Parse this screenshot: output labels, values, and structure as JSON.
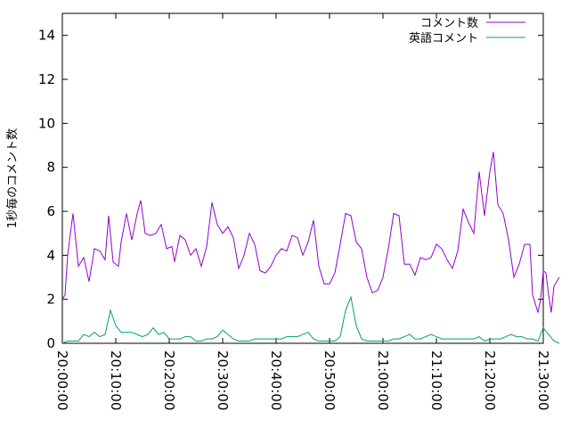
{
  "chart_data": {
    "type": "line",
    "title": "",
    "xlabel": "",
    "ylabel": "1秒毎のコメント数",
    "ylim": [
      0,
      15
    ],
    "yticks": [
      "0",
      "2",
      "4",
      "6",
      "8",
      "10",
      "12",
      "14"
    ],
    "xlim": [
      "20:00:00",
      "21:30:00"
    ],
    "xticks": [
      "20:00:00",
      "20:10:00",
      "20:20:00",
      "20:30:00",
      "20:40:00",
      "20:50:00",
      "21:00:00",
      "21:10:00",
      "21:20:00",
      "21:30:00"
    ],
    "grid": false,
    "legend_position": "top-right",
    "series": [
      {
        "name": "コメント数",
        "color": "#9400d3",
        "points": [
          [
            "20:00:00",
            2.0
          ],
          [
            "20:00:30",
            2.2
          ],
          [
            "20:01:00",
            4.0
          ],
          [
            "20:01:30",
            5.0
          ],
          [
            "20:02:00",
            5.9
          ],
          [
            "20:03:00",
            3.5
          ],
          [
            "20:04:00",
            3.9
          ],
          [
            "20:05:00",
            2.8
          ],
          [
            "20:06:00",
            4.3
          ],
          [
            "20:07:00",
            4.2
          ],
          [
            "20:08:00",
            3.8
          ],
          [
            "20:08:40",
            5.8
          ],
          [
            "20:09:30",
            3.7
          ],
          [
            "20:10:30",
            3.5
          ],
          [
            "20:11:00",
            4.6
          ],
          [
            "20:12:00",
            5.9
          ],
          [
            "20:13:00",
            4.7
          ],
          [
            "20:14:00",
            5.9
          ],
          [
            "20:14:40",
            6.5
          ],
          [
            "20:15:30",
            5.0
          ],
          [
            "20:16:30",
            4.9
          ],
          [
            "20:17:30",
            5.0
          ],
          [
            "20:18:30",
            5.4
          ],
          [
            "20:19:30",
            4.3
          ],
          [
            "20:20:30",
            4.4
          ],
          [
            "20:21:00",
            3.7
          ],
          [
            "20:22:00",
            4.9
          ],
          [
            "20:23:00",
            4.7
          ],
          [
            "20:24:00",
            4.0
          ],
          [
            "20:25:00",
            4.3
          ],
          [
            "20:26:00",
            3.5
          ],
          [
            "20:27:00",
            4.4
          ],
          [
            "20:28:00",
            6.4
          ],
          [
            "20:29:00",
            5.4
          ],
          [
            "20:30:00",
            5.0
          ],
          [
            "20:31:00",
            5.3
          ],
          [
            "20:32:00",
            4.8
          ],
          [
            "20:33:00",
            3.4
          ],
          [
            "20:34:00",
            4.0
          ],
          [
            "20:35:00",
            5.0
          ],
          [
            "20:36:00",
            4.5
          ],
          [
            "20:37:00",
            3.3
          ],
          [
            "20:38:00",
            3.2
          ],
          [
            "20:39:00",
            3.5
          ],
          [
            "20:40:00",
            4.0
          ],
          [
            "20:41:00",
            4.3
          ],
          [
            "20:42:00",
            4.2
          ],
          [
            "20:43:00",
            4.9
          ],
          [
            "20:44:00",
            4.8
          ],
          [
            "20:45:00",
            4.0
          ],
          [
            "20:46:00",
            4.6
          ],
          [
            "20:47:00",
            5.6
          ],
          [
            "20:48:00",
            3.5
          ],
          [
            "20:49:00",
            2.7
          ],
          [
            "20:50:00",
            2.7
          ],
          [
            "20:51:00",
            3.2
          ],
          [
            "20:52:00",
            4.5
          ],
          [
            "20:53:00",
            5.9
          ],
          [
            "20:54:00",
            5.8
          ],
          [
            "20:55:00",
            4.6
          ],
          [
            "20:56:00",
            4.3
          ],
          [
            "20:57:00",
            3.0
          ],
          [
            "20:58:00",
            2.3
          ],
          [
            "20:59:00",
            2.4
          ],
          [
            "21:00:00",
            3.0
          ],
          [
            "21:01:00",
            4.3
          ],
          [
            "21:02:00",
            5.9
          ],
          [
            "21:03:00",
            5.8
          ],
          [
            "21:04:00",
            3.6
          ],
          [
            "21:05:00",
            3.6
          ],
          [
            "21:06:00",
            3.1
          ],
          [
            "21:07:00",
            3.9
          ],
          [
            "21:08:00",
            3.8
          ],
          [
            "21:09:00",
            3.9
          ],
          [
            "21:10:00",
            4.5
          ],
          [
            "21:11:00",
            4.3
          ],
          [
            "21:12:00",
            3.8
          ],
          [
            "21:13:00",
            3.4
          ],
          [
            "21:14:00",
            4.2
          ],
          [
            "21:15:00",
            6.1
          ],
          [
            "21:16:00",
            5.5
          ],
          [
            "21:17:00",
            5.0
          ],
          [
            "21:18:00",
            7.8
          ],
          [
            "21:19:00",
            5.8
          ],
          [
            "21:20:00",
            7.8
          ],
          [
            "21:20:40",
            8.7
          ],
          [
            "21:21:30",
            6.3
          ],
          [
            "21:22:30",
            5.9
          ],
          [
            "21:23:30",
            4.7
          ],
          [
            "21:24:30",
            3.0
          ],
          [
            "21:25:30",
            3.6
          ],
          [
            "21:26:30",
            4.5
          ],
          [
            "21:27:30",
            4.5
          ],
          [
            "21:28:00",
            2.2
          ],
          [
            "21:28:30",
            1.8
          ],
          [
            "21:29:00",
            1.4
          ],
          [
            "21:29:30",
            2.0
          ],
          [
            "21:30:00",
            3.3
          ],
          [
            "21:30:30",
            3.2
          ],
          [
            "21:31:00",
            2.2
          ],
          [
            "21:31:30",
            1.4
          ],
          [
            "21:32:00",
            2.6
          ],
          [
            "21:33:00",
            3.0
          ]
        ]
      },
      {
        "name": "英語コメント",
        "color": "#009e73",
        "points": [
          [
            "20:00:00",
            0.0
          ],
          [
            "20:01:00",
            0.1
          ],
          [
            "20:02:00",
            0.1
          ],
          [
            "20:03:00",
            0.1
          ],
          [
            "20:04:00",
            0.4
          ],
          [
            "20:05:00",
            0.3
          ],
          [
            "20:06:00",
            0.5
          ],
          [
            "20:07:00",
            0.3
          ],
          [
            "20:08:00",
            0.4
          ],
          [
            "20:09:00",
            1.5
          ],
          [
            "20:10:00",
            0.8
          ],
          [
            "20:11:00",
            0.5
          ],
          [
            "20:12:00",
            0.5
          ],
          [
            "20:13:00",
            0.5
          ],
          [
            "20:14:00",
            0.4
          ],
          [
            "20:15:00",
            0.3
          ],
          [
            "20:16:00",
            0.4
          ],
          [
            "20:17:00",
            0.7
          ],
          [
            "20:18:00",
            0.4
          ],
          [
            "20:19:00",
            0.5
          ],
          [
            "20:20:00",
            0.2
          ],
          [
            "20:21:00",
            0.2
          ],
          [
            "20:22:00",
            0.2
          ],
          [
            "20:23:00",
            0.3
          ],
          [
            "20:24:00",
            0.3
          ],
          [
            "20:25:00",
            0.1
          ],
          [
            "20:26:00",
            0.1
          ],
          [
            "20:27:00",
            0.2
          ],
          [
            "20:28:00",
            0.2
          ],
          [
            "20:29:00",
            0.3
          ],
          [
            "20:30:00",
            0.6
          ],
          [
            "20:31:00",
            0.4
          ],
          [
            "20:32:00",
            0.2
          ],
          [
            "20:33:00",
            0.1
          ],
          [
            "20:34:00",
            0.1
          ],
          [
            "20:35:00",
            0.1
          ],
          [
            "20:36:00",
            0.2
          ],
          [
            "20:37:00",
            0.2
          ],
          [
            "20:38:00",
            0.2
          ],
          [
            "20:39:00",
            0.2
          ],
          [
            "20:40:00",
            0.2
          ],
          [
            "20:41:00",
            0.2
          ],
          [
            "20:42:00",
            0.3
          ],
          [
            "20:43:00",
            0.3
          ],
          [
            "20:44:00",
            0.3
          ],
          [
            "20:45:00",
            0.4
          ],
          [
            "20:46:00",
            0.5
          ],
          [
            "20:47:00",
            0.2
          ],
          [
            "20:48:00",
            0.1
          ],
          [
            "20:49:00",
            0.1
          ],
          [
            "20:50:00",
            0.1
          ],
          [
            "20:51:00",
            0.1
          ],
          [
            "20:52:00",
            0.3
          ],
          [
            "20:53:00",
            1.5
          ],
          [
            "20:54:00",
            2.1
          ],
          [
            "20:55:00",
            0.8
          ],
          [
            "20:56:00",
            0.2
          ],
          [
            "20:57:00",
            0.1
          ],
          [
            "20:58:00",
            0.1
          ],
          [
            "20:59:00",
            0.1
          ],
          [
            "21:00:00",
            0.1
          ],
          [
            "21:01:00",
            0.1
          ],
          [
            "21:02:00",
            0.2
          ],
          [
            "21:03:00",
            0.2
          ],
          [
            "21:04:00",
            0.3
          ],
          [
            "21:05:00",
            0.4
          ],
          [
            "21:06:00",
            0.2
          ],
          [
            "21:07:00",
            0.2
          ],
          [
            "21:08:00",
            0.3
          ],
          [
            "21:09:00",
            0.4
          ],
          [
            "21:10:00",
            0.3
          ],
          [
            "21:11:00",
            0.2
          ],
          [
            "21:12:00",
            0.2
          ],
          [
            "21:13:00",
            0.2
          ],
          [
            "21:14:00",
            0.2
          ],
          [
            "21:15:00",
            0.2
          ],
          [
            "21:16:00",
            0.2
          ],
          [
            "21:17:00",
            0.2
          ],
          [
            "21:18:00",
            0.3
          ],
          [
            "21:19:00",
            0.1
          ],
          [
            "21:20:00",
            0.2
          ],
          [
            "21:21:00",
            0.2
          ],
          [
            "21:22:00",
            0.2
          ],
          [
            "21:23:00",
            0.3
          ],
          [
            "21:24:00",
            0.4
          ],
          [
            "21:25:00",
            0.3
          ],
          [
            "21:26:00",
            0.3
          ],
          [
            "21:27:00",
            0.2
          ],
          [
            "21:28:00",
            0.2
          ],
          [
            "21:29:00",
            0.1
          ],
          [
            "21:30:00",
            0.7
          ],
          [
            "21:31:00",
            0.4
          ],
          [
            "21:32:00",
            0.1
          ],
          [
            "21:33:00",
            0.0
          ]
        ]
      }
    ]
  }
}
